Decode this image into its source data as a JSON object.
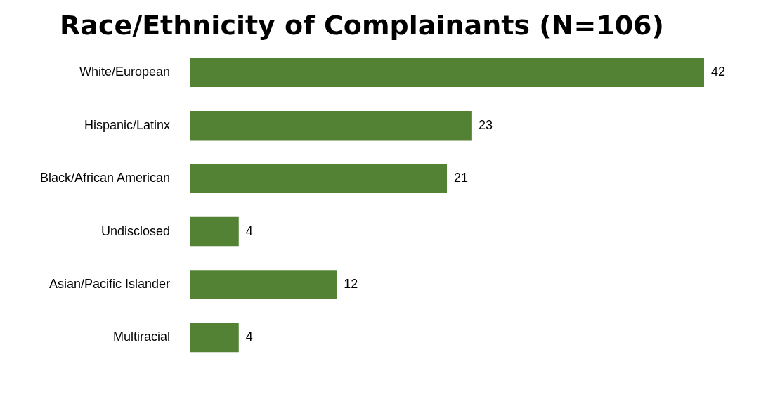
{
  "chart_data": {
    "type": "bar",
    "orientation": "horizontal",
    "title": "Race/Ethnicity of Complainants (N=106)",
    "categories": [
      "White/European",
      "Hispanic/Latinx",
      "Black/African American",
      "Undisclosed",
      "Asian/Pacific Islander",
      "Multiracial"
    ],
    "values": [
      42,
      23,
      21,
      4,
      12,
      4
    ],
    "color": "#548235",
    "data_labels": true,
    "legend": false
  }
}
